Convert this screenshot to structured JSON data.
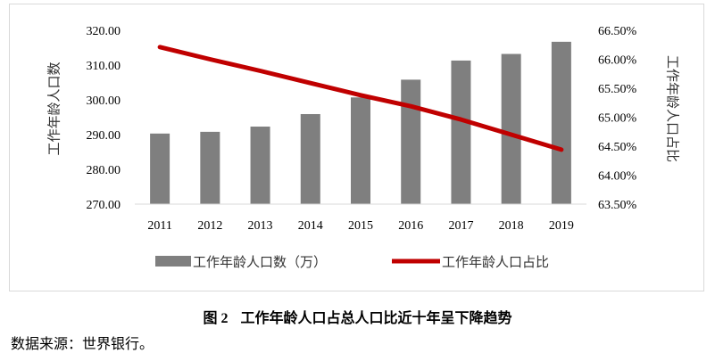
{
  "chart_data": {
    "type": "bar+line",
    "categories": [
      "2011",
      "2012",
      "2013",
      "2014",
      "2015",
      "2016",
      "2017",
      "2018",
      "2019"
    ],
    "series": [
      {
        "name": "工作年龄人口数（万）",
        "type": "bar",
        "axis": "left",
        "color": "#7f7f7f",
        "values": [
          290.3,
          290.8,
          292.3,
          295.9,
          300.7,
          305.8,
          311.3,
          313.2,
          316.7
        ]
      },
      {
        "name": "工作年龄人口占比",
        "type": "line",
        "axis": "right",
        "color": "#c00000",
        "values": [
          66.21,
          66.0,
          65.8,
          65.59,
          65.38,
          65.19,
          64.96,
          64.7,
          64.44
        ]
      }
    ],
    "left_axis": {
      "label": "工作年龄人口数",
      "min": 270,
      "max": 320,
      "step": 10,
      "ticks": [
        "270.00",
        "280.00",
        "290.00",
        "300.00",
        "310.00",
        "320.00"
      ]
    },
    "right_axis": {
      "label": "工作年龄人口占比",
      "min": 63.5,
      "max": 66.5,
      "step": 0.5,
      "ticks": [
        "63.50%",
        "64.00%",
        "64.50%",
        "65.00%",
        "65.50%",
        "66.00%",
        "66.50%"
      ]
    },
    "grid": false,
    "legend_position": "bottom"
  },
  "caption": {
    "number": "图 2",
    "text": "工作年龄人口占总人口比近十年呈下降趋势"
  },
  "source": "数据来源：世界银行。"
}
